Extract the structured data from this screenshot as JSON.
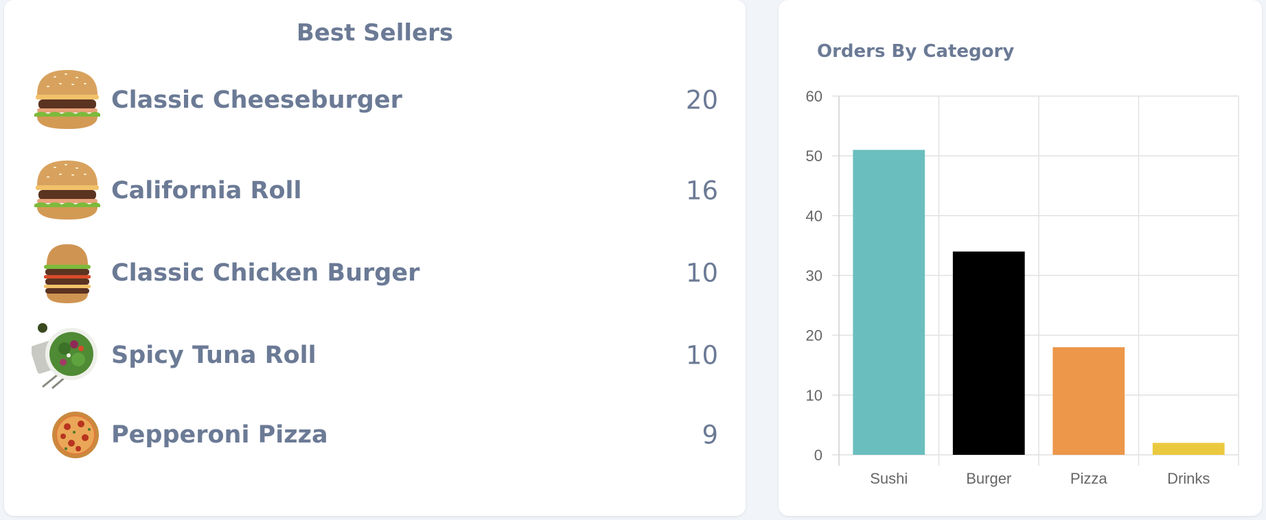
{
  "best_sellers": {
    "title": "Best Sellers",
    "items": [
      {
        "name": "Classic Cheeseburger",
        "count": "20",
        "icon": "cheeseburger-icon"
      },
      {
        "name": "California Roll",
        "count": "16",
        "icon": "cheeseburger-icon"
      },
      {
        "name": "Classic Chicken Burger",
        "count": "10",
        "icon": "stacked-burger-icon"
      },
      {
        "name": "Spicy Tuna Roll",
        "count": "10",
        "icon": "salad-bowl-icon"
      },
      {
        "name": "Pepperoni Pizza",
        "count": "9",
        "icon": "pizza-icon"
      }
    ]
  },
  "orders_chart": {
    "title": "Orders By Category"
  },
  "chart_data": {
    "type": "bar",
    "categories": [
      "Sushi",
      "Burger",
      "Pizza",
      "Drinks"
    ],
    "values": [
      51,
      34,
      18,
      2
    ],
    "colors": [
      "#6abfbe",
      "#000000",
      "#ec974a",
      "#ebc93f"
    ],
    "ylim": [
      0,
      60
    ],
    "yticks": [
      "0",
      "10",
      "20",
      "30",
      "40",
      "50",
      "60"
    ],
    "grid": true
  }
}
